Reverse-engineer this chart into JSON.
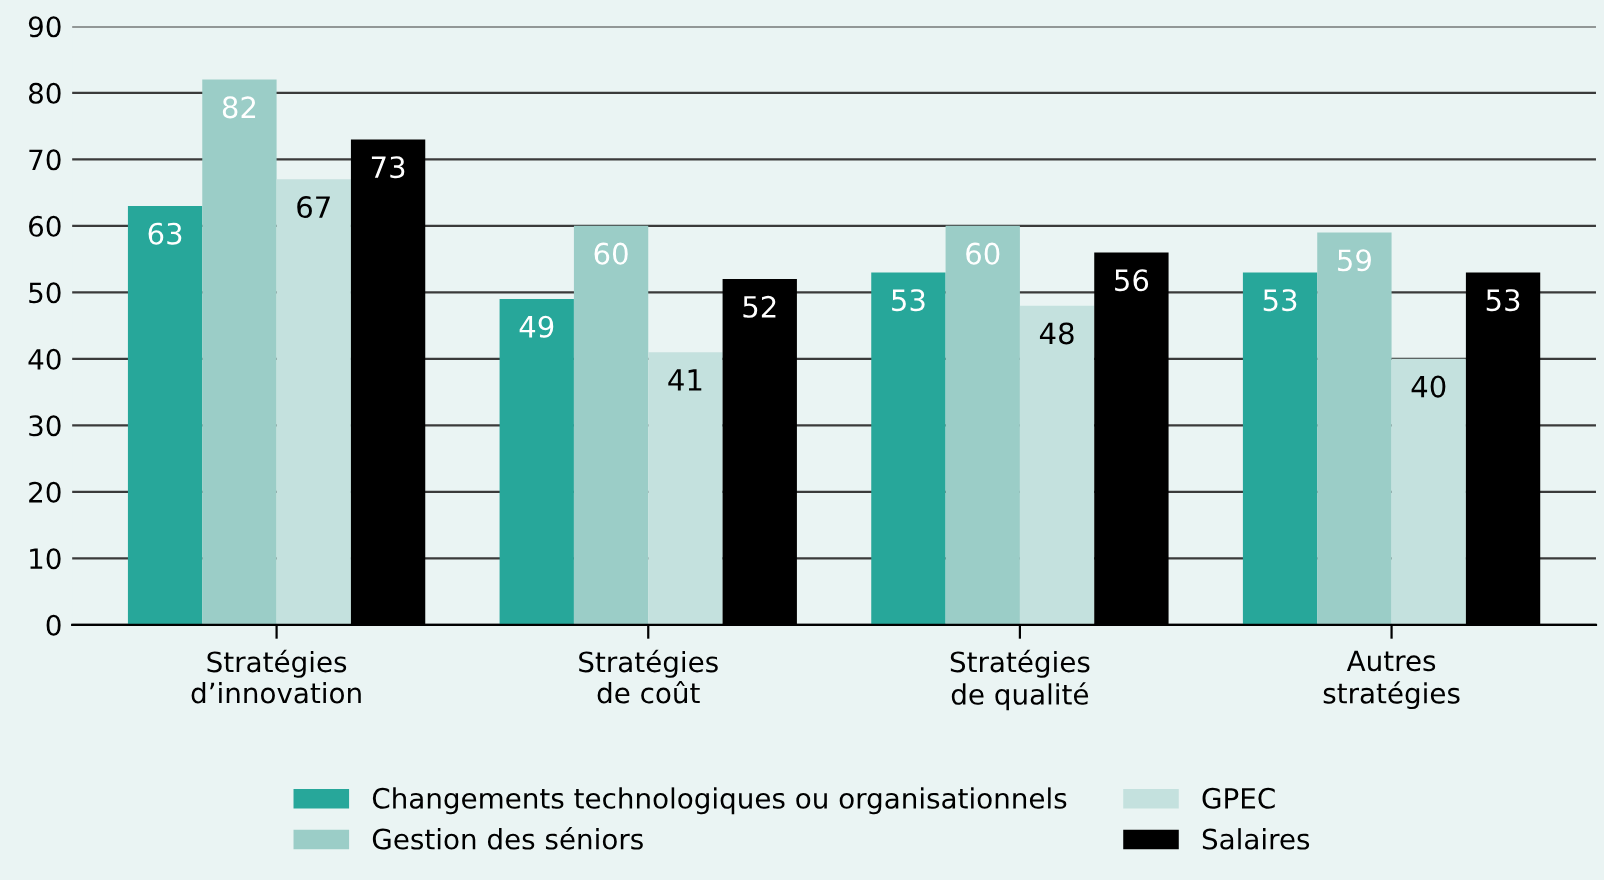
{
  "chart_data": {
    "type": "bar",
    "categories": [
      "Stratégies\nd’innovation",
      "Stratégies\nde coût",
      "Stratégies\nde qualité",
      "Autres\nstratégies"
    ],
    "series": [
      {
        "name": "Changements technologiques ou organisationnels",
        "color": "#27a79a",
        "values": [
          63,
          49,
          53,
          53
        ]
      },
      {
        "name": "Gestion des séniors",
        "color": "#9bcdc7",
        "values": [
          82,
          60,
          60,
          59
        ]
      },
      {
        "name": "GPEC",
        "color": "#c4e1de",
        "values": [
          67,
          41,
          48,
          40
        ]
      },
      {
        "name": "Salaires",
        "color": "#000000",
        "values": [
          73,
          52,
          56,
          53
        ]
      }
    ],
    "ylim": [
      0,
      90
    ],
    "yticks": [
      0,
      10,
      20,
      30,
      40,
      50,
      60,
      70,
      80,
      90
    ],
    "grid": "y",
    "legend": "bottom",
    "data_labels": true
  }
}
